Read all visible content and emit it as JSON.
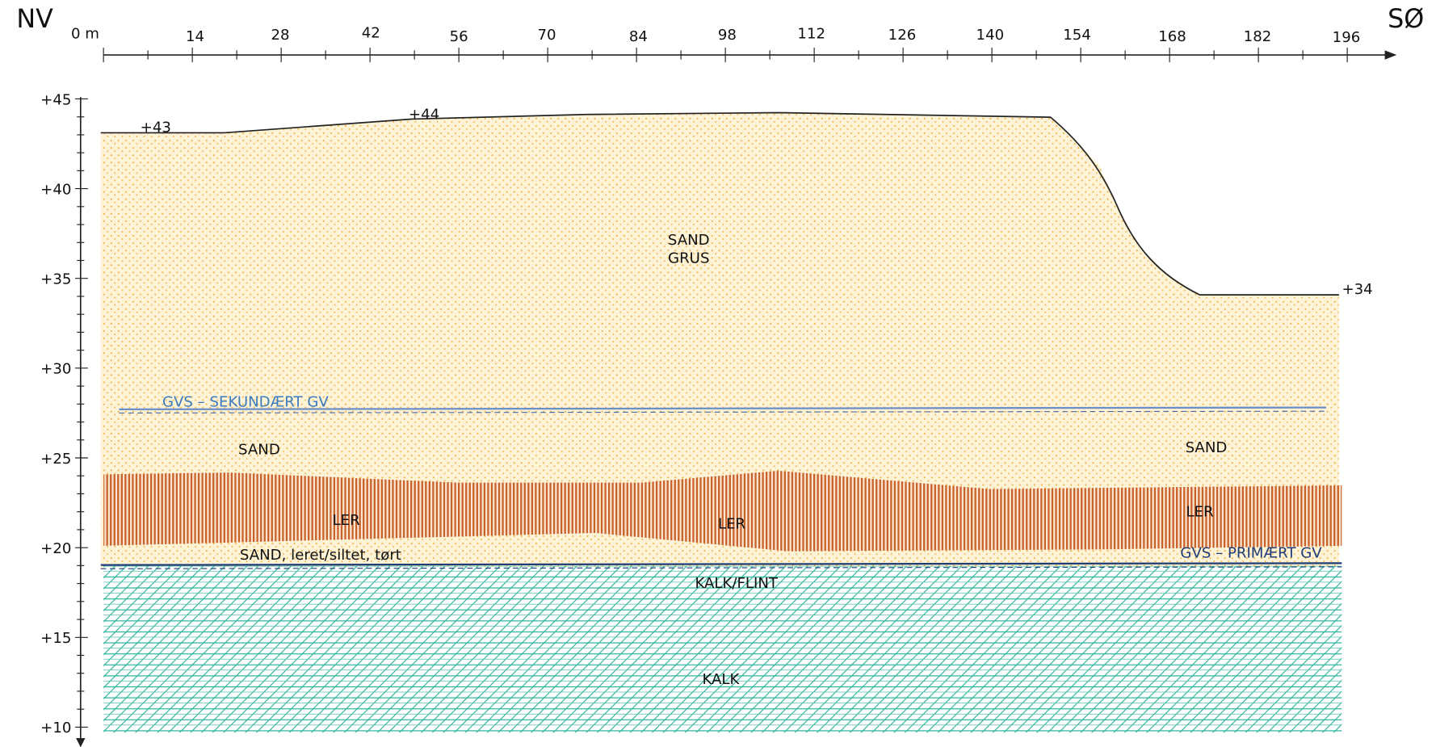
{
  "direction_labels": {
    "left": "NV",
    "right": "SØ"
  },
  "x_axis": {
    "ticks": [
      "0 m",
      "14",
      "28",
      "42",
      "56",
      "70",
      "84",
      "98",
      "112",
      "126",
      "140",
      "154",
      "168",
      "182",
      "196"
    ]
  },
  "y_axis": {
    "ticks": [
      "+45",
      "+40",
      "+35",
      "+30",
      "+25",
      "+20",
      "+15",
      "+10"
    ]
  },
  "elevations": [
    "+43",
    "+44",
    "+34"
  ],
  "layers": [
    "SAND",
    "GRUS",
    "SAND",
    "SAND",
    "LER",
    "LER",
    "LER",
    "SAND, leret/siltet, tørt",
    "KALK/FLINT",
    "KALK"
  ],
  "groundwater": [
    "GVS – SEKUNDÆRT GV",
    "GVS – PRIMÆRT GV"
  ]
}
